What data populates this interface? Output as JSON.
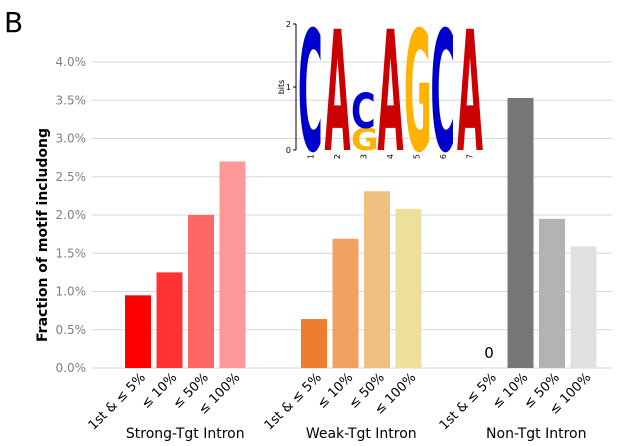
{
  "panel_label": "B",
  "chart_data": {
    "type": "bar",
    "ylabel": "Fraction of motif includong",
    "ylim": [
      0,
      4.0
    ],
    "yticks": [
      "0.0%",
      "0.5%",
      "1.0%",
      "1.5%",
      "2.0%",
      "2.5%",
      "3.0%",
      "3.5%",
      "4.0%"
    ],
    "grid": true,
    "groups": [
      {
        "name": "Strong-Tgt Intron",
        "categories": [
          "1st & ≤ 5%",
          "≤ 10%",
          "≤ 50%",
          "≤ 100%"
        ],
        "values": [
          0.95,
          1.25,
          2.0,
          2.7
        ],
        "colors": [
          "#ff0000",
          "#ff3333",
          "#ff6666",
          "#ff9999"
        ]
      },
      {
        "name": "Weak-Tgt Intron",
        "categories": [
          "1st & ≤ 5%",
          "≤ 10%",
          "≤ 50%",
          "≤ 100%"
        ],
        "values": [
          0.64,
          1.69,
          2.31,
          2.08
        ],
        "colors": [
          "#ed7d31",
          "#f0a060",
          "#f0c080",
          "#ede09a"
        ]
      },
      {
        "name": "Non-Tgt Intron",
        "categories": [
          "1st & ≤ 5%",
          "≤ 10%",
          "≤ 50%",
          "≤ 100%"
        ],
        "values": [
          0,
          3.53,
          1.95,
          1.59
        ],
        "colors": [
          "#777777",
          "#777777",
          "#b3b3b3",
          "#e0e0e0"
        ],
        "annotations": [
          {
            "index": 0,
            "text": "0"
          }
        ]
      }
    ]
  },
  "motif_logo": {
    "ylabel": "bits",
    "yticks": [
      "0",
      "1",
      "2"
    ],
    "positions": [
      "1",
      "2",
      "3",
      "4",
      "5",
      "6",
      "7"
    ],
    "letters": [
      {
        "pos": 1,
        "stack": [
          {
            "char": "C",
            "height": 1.9,
            "color": "#0000cc"
          }
        ]
      },
      {
        "pos": 2,
        "stack": [
          {
            "char": "A",
            "height": 1.9,
            "color": "#cc0000"
          }
        ]
      },
      {
        "pos": 3,
        "stack": [
          {
            "char": "G",
            "height": 0.35,
            "color": "#ffb300"
          },
          {
            "char": "C",
            "height": 0.55,
            "color": "#0000cc"
          }
        ]
      },
      {
        "pos": 4,
        "stack": [
          {
            "char": "A",
            "height": 1.9,
            "color": "#cc0000"
          }
        ]
      },
      {
        "pos": 5,
        "stack": [
          {
            "char": "G",
            "height": 1.9,
            "color": "#ffb300"
          }
        ]
      },
      {
        "pos": 6,
        "stack": [
          {
            "char": "C",
            "height": 1.9,
            "color": "#0000cc"
          }
        ]
      },
      {
        "pos": 7,
        "stack": [
          {
            "char": "A",
            "height": 1.9,
            "color": "#cc0000"
          }
        ]
      }
    ]
  }
}
